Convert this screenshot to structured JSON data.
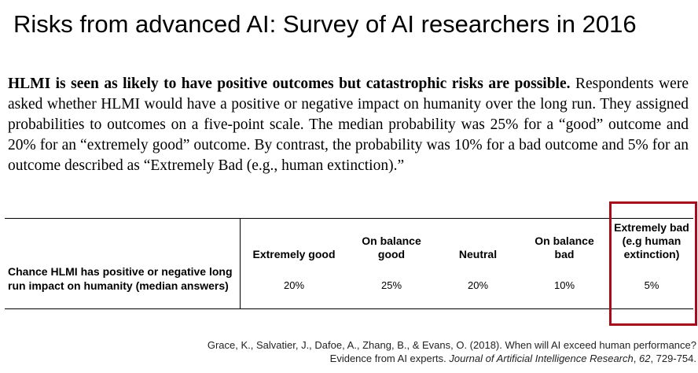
{
  "title": "Risks from advanced AI: Survey of AI researchers in 2016",
  "paragraph": {
    "bold_lead": "HLMI is seen as likely to have positive outcomes but catastrophic risks are possible.",
    "body": " Respondents were asked whether HLMI would have a positive or negative impact on humanity over the long run. They assigned probabilities to outcomes on a five-point scale. The median probability was 25% for a “good” outcome and 20% for an “extremely good” outcome. By contrast, the probability was 10% for a bad outcome and 5% for an outcome described as “Extremely Bad (e.g., human extinction).”"
  },
  "table": {
    "row_label": "Chance HLMI has positive or negative long run impact on humanity (median answers)",
    "columns": [
      {
        "header": "Extremely good",
        "value": "20%"
      },
      {
        "header": "On balance good",
        "value": "25%"
      },
      {
        "header": "Neutral",
        "value": "20%"
      },
      {
        "header": "On balance bad",
        "value": "10%"
      },
      {
        "header": "Extremely bad (e.g human extinction)",
        "value": "5%"
      }
    ]
  },
  "citation": {
    "line1": "Grace, K., Salvatier, J., Dafoe, A., Zhang, B., & Evans, O. (2018). When will AI exceed human performance?",
    "line2_plain": "Evidence from AI experts. ",
    "line2_journal": "Journal of Artificial Intelligence Research",
    "line2_sep": ", ",
    "line2_volume": "62",
    "line2_pages": ", 729-754."
  },
  "highlight_color": "#a50c1c"
}
